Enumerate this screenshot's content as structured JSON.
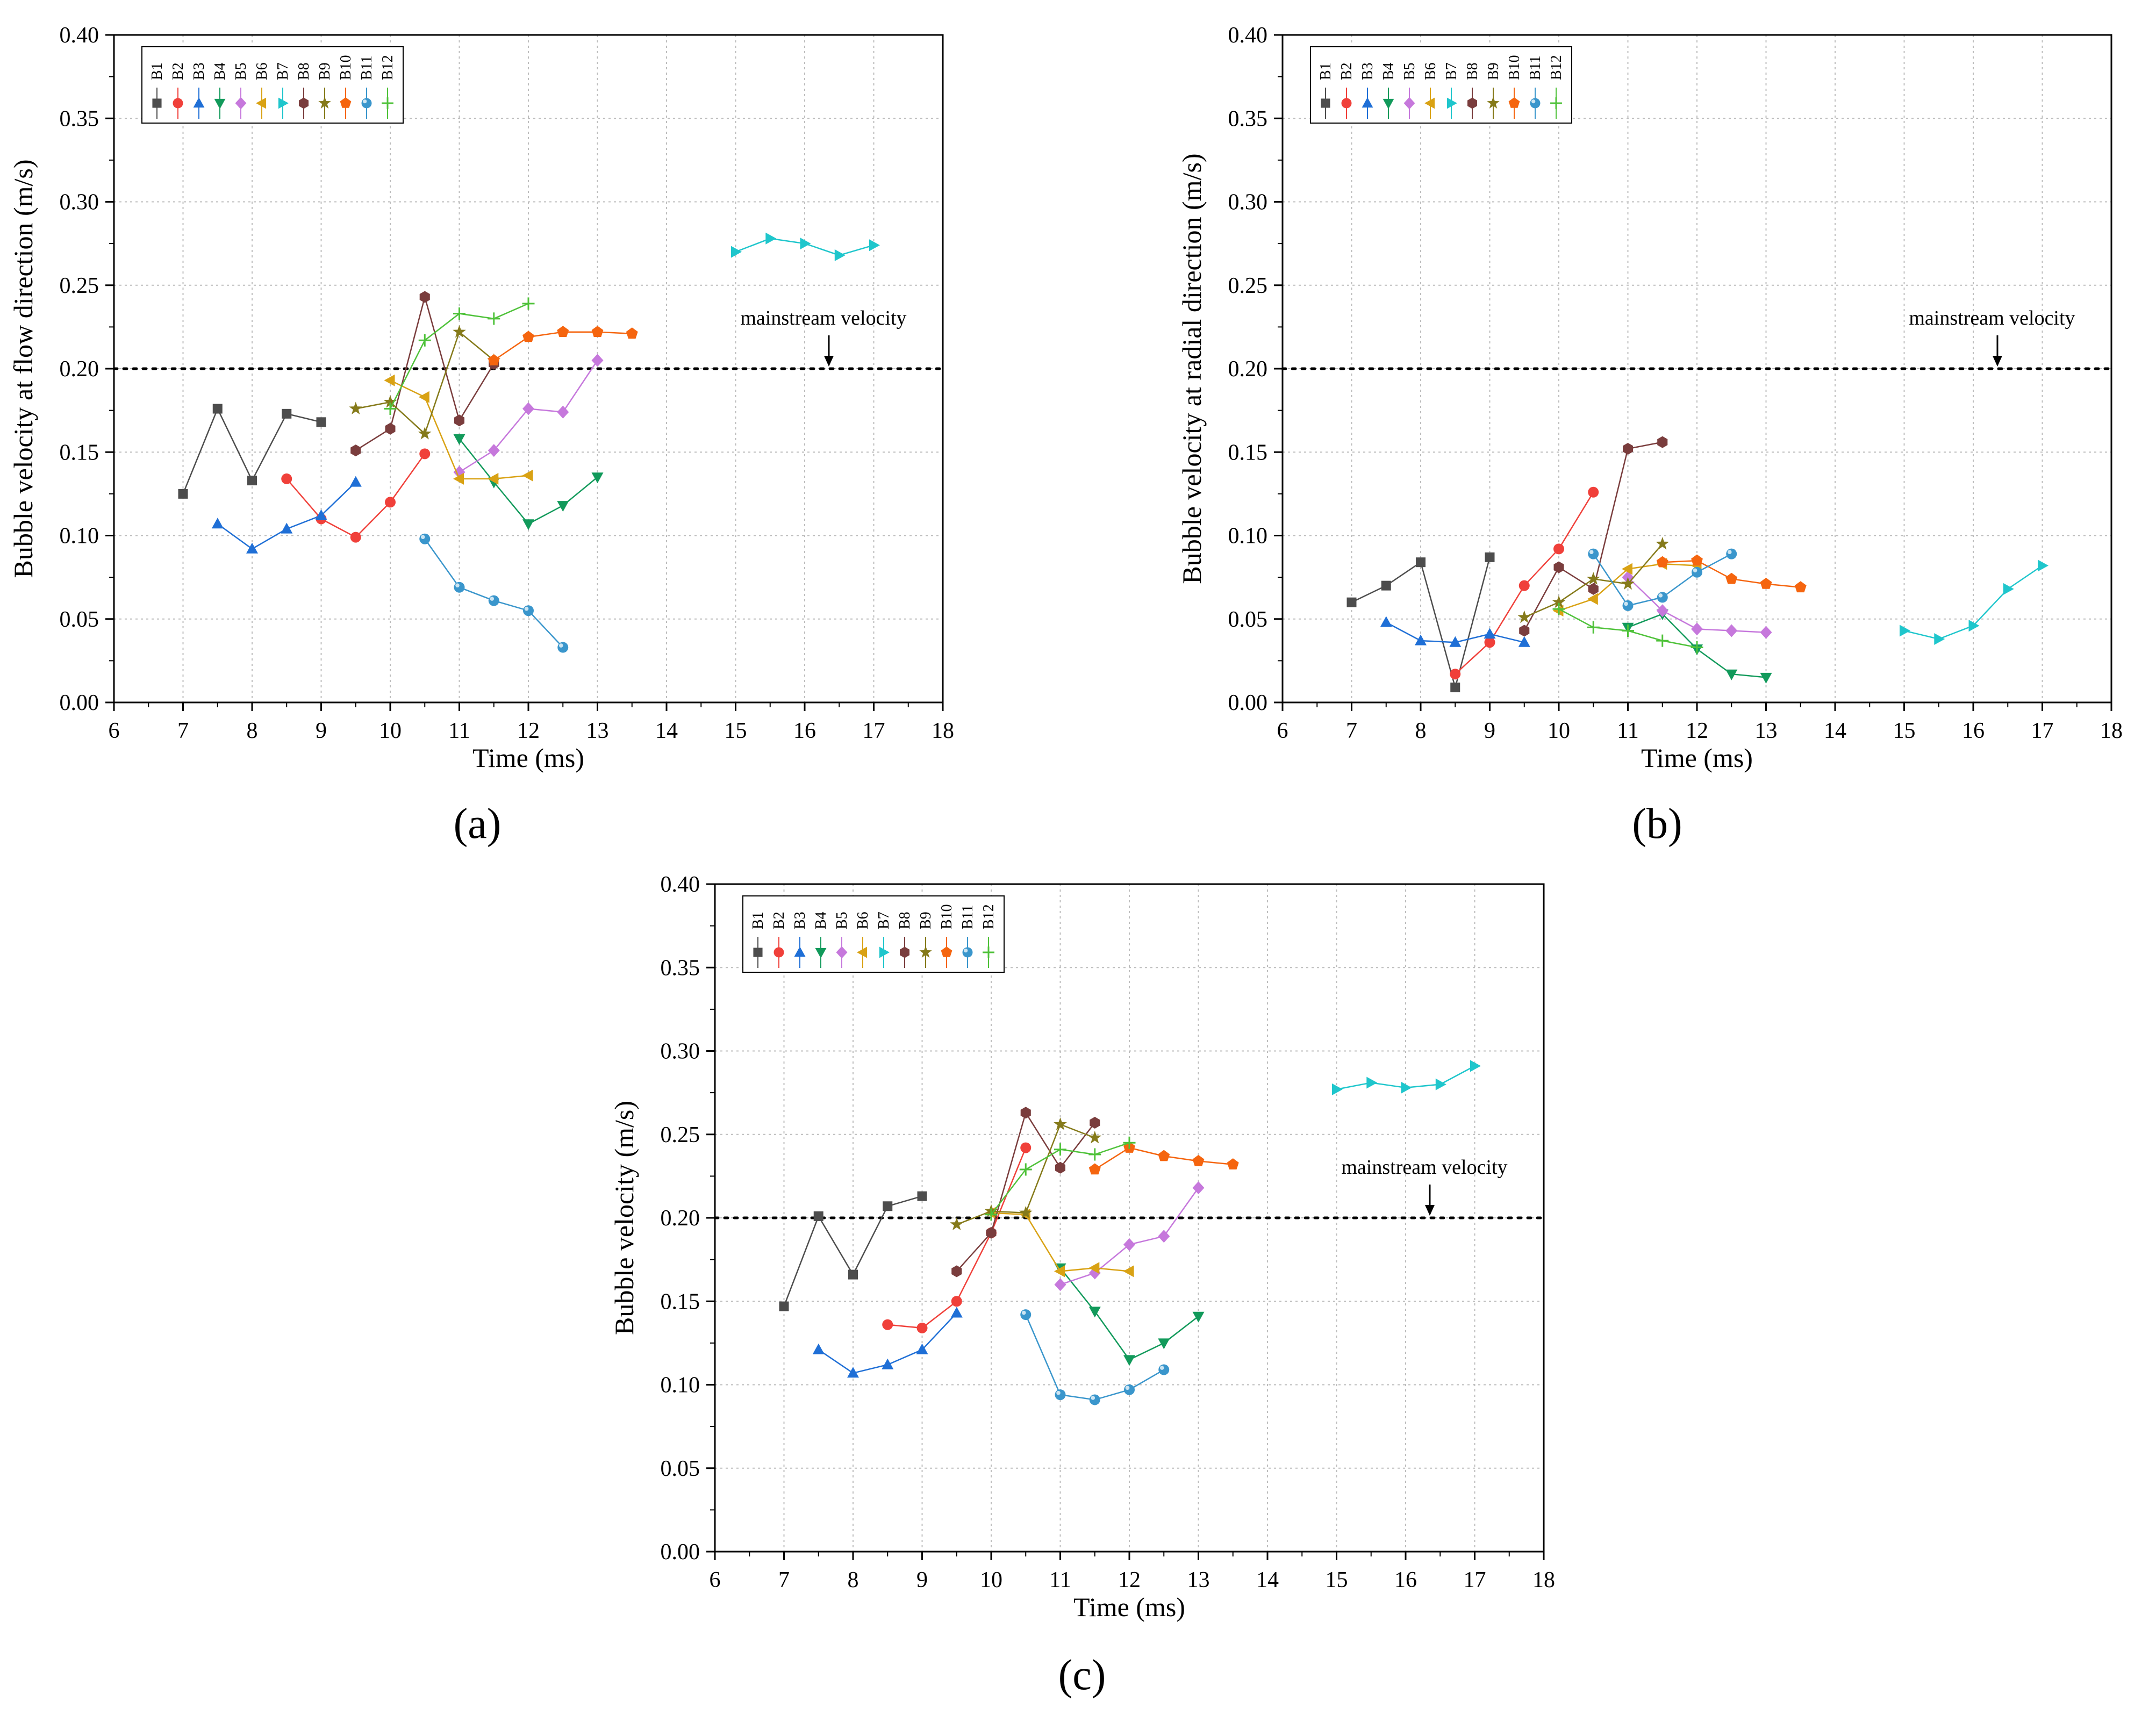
{
  "figure": {
    "series_names": [
      "B1",
      "B2",
      "B3",
      "B4",
      "B5",
      "B6",
      "B7",
      "B8",
      "B9",
      "B10",
      "B11",
      "B12"
    ],
    "series_colors": [
      "#4d4d4d",
      "#f0403a",
      "#1f6fd6",
      "#129a5b",
      "#c678dc",
      "#d9a214",
      "#1fc6cc",
      "#7a3d3d",
      "#857a1a",
      "#f5650f",
      "#3a96cc",
      "#4fc23a"
    ],
    "series_markers": [
      "square",
      "circle",
      "triangle-up",
      "triangle-down",
      "diamond",
      "triangle-left",
      "triangle-right",
      "hexagon",
      "star",
      "pentagon",
      "sphere",
      "plus"
    ],
    "annotation_label": "mainstream velocity",
    "panel_labels": [
      "(a)",
      "(b)",
      "(c)"
    ]
  },
  "chart_data": [
    {
      "type": "line",
      "panel": "(a)",
      "xlabel": "Time (ms)",
      "ylabel": "Bubble velocity at flow direction (m/s)",
      "xlim": [
        6,
        18
      ],
      "ylim": [
        0,
        0.4
      ],
      "xticks": [
        "6",
        "7",
        "8",
        "9",
        "10",
        "11",
        "12",
        "13",
        "14",
        "15",
        "16",
        "17",
        "18"
      ],
      "yticks": [
        "0.00",
        "0.05",
        "0.10",
        "0.15",
        "0.20",
        "0.25",
        "0.30",
        "0.35",
        "0.40"
      ],
      "grid": true,
      "legend_position": "top-left",
      "reference_line": {
        "y": 0.2,
        "label": "mainstream velocity",
        "arrow_x": 16.35
      },
      "series": [
        {
          "name": "B1",
          "x": [
            7,
            7.5,
            8,
            8.5,
            9
          ],
          "y": [
            0.125,
            0.176,
            0.133,
            0.173,
            0.168
          ]
        },
        {
          "name": "B2",
          "x": [
            8.5,
            9,
            9.5,
            10,
            10.5
          ],
          "y": [
            0.134,
            0.11,
            0.099,
            0.12,
            0.149
          ]
        },
        {
          "name": "B3",
          "x": [
            7.5,
            8,
            8.5,
            9,
            9.5
          ],
          "y": [
            0.107,
            0.092,
            0.104,
            0.112,
            0.132
          ]
        },
        {
          "name": "B4",
          "x": [
            11,
            11.5,
            12,
            12.5,
            13
          ],
          "y": [
            0.158,
            0.132,
            0.107,
            0.118,
            0.135
          ]
        },
        {
          "name": "B5",
          "x": [
            11,
            11.5,
            12,
            12.5,
            13
          ],
          "y": [
            0.138,
            0.151,
            0.176,
            0.174,
            0.205
          ]
        },
        {
          "name": "B6",
          "x": [
            10,
            10.5,
            11,
            11.5,
            12
          ],
          "y": [
            0.193,
            0.183,
            0.134,
            0.134,
            0.136
          ]
        },
        {
          "name": "B7",
          "x": [
            15,
            15.5,
            16,
            16.5,
            17
          ],
          "y": [
            0.27,
            0.278,
            0.275,
            0.268,
            0.274
          ]
        },
        {
          "name": "B8",
          "x": [
            9.5,
            10,
            10.5,
            11,
            11.5
          ],
          "y": [
            0.151,
            0.164,
            0.243,
            0.169,
            0.203
          ]
        },
        {
          "name": "B9",
          "x": [
            9.5,
            10,
            10.5,
            11,
            11.5
          ],
          "y": [
            0.176,
            0.18,
            0.161,
            0.222,
            0.205
          ]
        },
        {
          "name": "B10",
          "x": [
            11.5,
            12,
            12.5,
            13,
            13.5
          ],
          "y": [
            0.205,
            0.219,
            0.222,
            0.222,
            0.221
          ]
        },
        {
          "name": "B11",
          "x": [
            10.5,
            11,
            11.5,
            12,
            12.5
          ],
          "y": [
            0.098,
            0.069,
            0.061,
            0.055,
            0.033
          ]
        },
        {
          "name": "B12",
          "x": [
            10,
            10.5,
            11,
            11.5,
            12
          ],
          "y": [
            0.176,
            0.217,
            0.233,
            0.23,
            0.239
          ]
        }
      ]
    },
    {
      "type": "line",
      "panel": "(b)",
      "xlabel": "Time (ms)",
      "ylabel": "Bubble velocity at radial direction (m/s)",
      "xlim": [
        6,
        18
      ],
      "ylim": [
        0,
        0.4
      ],
      "xticks": [
        "6",
        "7",
        "8",
        "9",
        "10",
        "11",
        "12",
        "13",
        "14",
        "15",
        "16",
        "17",
        "18"
      ],
      "yticks": [
        "0.00",
        "0.05",
        "0.10",
        "0.15",
        "0.20",
        "0.25",
        "0.30",
        "0.35",
        "0.40"
      ],
      "grid": true,
      "legend_position": "top-left",
      "reference_line": {
        "y": 0.2,
        "label": "mainstream velocity",
        "arrow_x": 16.35
      },
      "series": [
        {
          "name": "B1",
          "x": [
            7,
            7.5,
            8,
            8.5,
            9
          ],
          "y": [
            0.06,
            0.07,
            0.084,
            0.009,
            0.087
          ]
        },
        {
          "name": "B2",
          "x": [
            8.5,
            9,
            9.5,
            10,
            10.5
          ],
          "y": [
            0.017,
            0.036,
            0.07,
            0.092,
            0.126
          ]
        },
        {
          "name": "B3",
          "x": [
            7.5,
            8,
            8.5,
            9,
            9.5
          ],
          "y": [
            0.048,
            0.037,
            0.036,
            0.041,
            0.036
          ]
        },
        {
          "name": "B4",
          "x": [
            11,
            11.5,
            12,
            12.5,
            13
          ],
          "y": [
            0.045,
            0.053,
            0.032,
            0.017,
            0.015
          ]
        },
        {
          "name": "B5",
          "x": [
            11,
            11.5,
            12,
            12.5,
            13
          ],
          "y": [
            0.075,
            0.055,
            0.044,
            0.043,
            0.042
          ]
        },
        {
          "name": "B6",
          "x": [
            10,
            10.5,
            11,
            11.5,
            12
          ],
          "y": [
            0.055,
            0.062,
            0.08,
            0.083,
            0.082
          ]
        },
        {
          "name": "B7",
          "x": [
            15,
            15.5,
            16,
            16.5,
            17
          ],
          "y": [
            0.043,
            0.038,
            0.046,
            0.068,
            0.082
          ]
        },
        {
          "name": "B8",
          "x": [
            9.5,
            10,
            10.5,
            11,
            11.5
          ],
          "y": [
            0.043,
            0.081,
            0.068,
            0.152,
            0.156
          ]
        },
        {
          "name": "B9",
          "x": [
            9.5,
            10,
            10.5,
            11,
            11.5
          ],
          "y": [
            0.051,
            0.06,
            0.074,
            0.071,
            0.095
          ]
        },
        {
          "name": "B10",
          "x": [
            11.5,
            12,
            12.5,
            13,
            13.5
          ],
          "y": [
            0.084,
            0.085,
            0.074,
            0.071,
            0.069
          ]
        },
        {
          "name": "B11",
          "x": [
            10.5,
            11,
            11.5,
            12,
            12.5
          ],
          "y": [
            0.089,
            0.058,
            0.063,
            0.078,
            0.089
          ]
        },
        {
          "name": "B12",
          "x": [
            10,
            10.5,
            11,
            11.5,
            12
          ],
          "y": [
            0.056,
            0.045,
            0.043,
            0.037,
            0.033
          ]
        }
      ]
    },
    {
      "type": "line",
      "panel": "(c)",
      "xlabel": "Time (ms)",
      "ylabel": "Bubble velocity (m/s)",
      "xlim": [
        6,
        18
      ],
      "ylim": [
        0,
        0.4
      ],
      "xticks": [
        "6",
        "7",
        "8",
        "9",
        "10",
        "11",
        "12",
        "13",
        "14",
        "15",
        "16",
        "17",
        "18"
      ],
      "yticks": [
        "0.00",
        "0.05",
        "0.10",
        "0.15",
        "0.20",
        "0.25",
        "0.30",
        "0.35",
        "0.40"
      ],
      "grid": true,
      "legend_position": "top-left",
      "reference_line": {
        "y": 0.2,
        "label": "mainstream velocity",
        "arrow_x": 16.35
      },
      "series": [
        {
          "name": "B1",
          "x": [
            7,
            7.5,
            8,
            8.5,
            9
          ],
          "y": [
            0.147,
            0.201,
            0.166,
            0.207,
            0.213
          ]
        },
        {
          "name": "B2",
          "x": [
            8.5,
            9,
            9.5,
            10,
            10.5
          ],
          "y": [
            0.136,
            0.134,
            0.15,
            0.191,
            0.242
          ]
        },
        {
          "name": "B3",
          "x": [
            7.5,
            8,
            8.5,
            9,
            9.5
          ],
          "y": [
            0.121,
            0.107,
            0.112,
            0.121,
            0.143
          ]
        },
        {
          "name": "B4",
          "x": [
            11,
            11.5,
            12,
            12.5,
            13
          ],
          "y": [
            0.17,
            0.144,
            0.115,
            0.125,
            0.141
          ]
        },
        {
          "name": "B5",
          "x": [
            11,
            11.5,
            12,
            12.5,
            13
          ],
          "y": [
            0.16,
            0.167,
            0.184,
            0.189,
            0.218
          ]
        },
        {
          "name": "B6",
          "x": [
            10,
            10.5,
            11,
            11.5,
            12
          ],
          "y": [
            0.203,
            0.202,
            0.168,
            0.17,
            0.168
          ]
        },
        {
          "name": "B7",
          "x": [
            15,
            15.5,
            16,
            16.5,
            17
          ],
          "y": [
            0.277,
            0.281,
            0.278,
            0.28,
            0.291
          ]
        },
        {
          "name": "B8",
          "x": [
            9.5,
            10,
            10.5,
            11,
            11.5
          ],
          "y": [
            0.168,
            0.191,
            0.263,
            0.23,
            0.257
          ]
        },
        {
          "name": "B9",
          "x": [
            9.5,
            10,
            10.5,
            11,
            11.5
          ],
          "y": [
            0.196,
            0.204,
            0.203,
            0.256,
            0.248
          ]
        },
        {
          "name": "B10",
          "x": [
            11.5,
            12,
            12.5,
            13,
            13.5
          ],
          "y": [
            0.229,
            0.242,
            0.237,
            0.234,
            0.232
          ]
        },
        {
          "name": "B11",
          "x": [
            10.5,
            11,
            11.5,
            12,
            12.5
          ],
          "y": [
            0.142,
            0.094,
            0.091,
            0.097,
            0.109
          ]
        },
        {
          "name": "B12",
          "x": [
            10,
            10.5,
            11,
            11.5,
            12
          ],
          "y": [
            0.202,
            0.229,
            0.241,
            0.238,
            0.245
          ]
        }
      ]
    }
  ]
}
